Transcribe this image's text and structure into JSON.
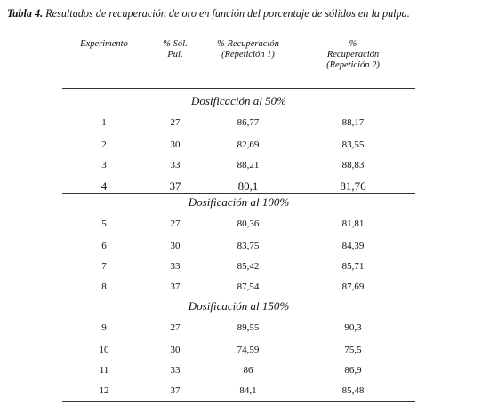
{
  "caption": {
    "label": "Tabla 4.",
    "text": " Resultados de recuperación de oro en función del porcentaje de sólidos en la pulpa."
  },
  "headers": {
    "experimento": "Experimento",
    "solidos_1": "% Sól.",
    "solidos_2": "Pul.",
    "rec1_1": "% Recuperación",
    "rec1_2": "(Repetición 1)",
    "rec2_1": "%",
    "rec2_2": "Recuperación",
    "rec2_3": "(Repetición 2)"
  },
  "sections": [
    {
      "title": "Dosificación al 50%",
      "rows": [
        {
          "exp": "1",
          "sol": "27",
          "r1": "86,77",
          "r2": "88,17"
        },
        {
          "exp": "2",
          "sol": "30",
          "r1": "82,69",
          "r2": "83,55"
        },
        {
          "exp": "3",
          "sol": "33",
          "r1": "88,21",
          "r2": "88,83"
        },
        {
          "exp": "4",
          "sol": "37",
          "r1": "80,1",
          "r2": "81,76"
        }
      ]
    },
    {
      "title": "Dosificación al 100%",
      "rows": [
        {
          "exp": "5",
          "sol": "27",
          "r1": "80,36",
          "r2": "81,81"
        },
        {
          "exp": "6",
          "sol": "30",
          "r1": "83,75",
          "r2": "84,39"
        },
        {
          "exp": "7",
          "sol": "33",
          "r1": "85,42",
          "r2": "85,71"
        },
        {
          "exp": "8",
          "sol": "37",
          "r1": "87,54",
          "r2": "87,69"
        }
      ]
    },
    {
      "title": "Dosificación al 150%",
      "rows": [
        {
          "exp": "9",
          "sol": "27",
          "r1": "89,55",
          "r2": "90,3"
        },
        {
          "exp": "10",
          "sol": "30",
          "r1": "74,59",
          "r2": "75,5"
        },
        {
          "exp": "11",
          "sol": "33",
          "r1": "86",
          "r2": "86,9"
        },
        {
          "exp": "12",
          "sol": "37",
          "r1": "84,1",
          "r2": "85,48"
        }
      ]
    }
  ]
}
